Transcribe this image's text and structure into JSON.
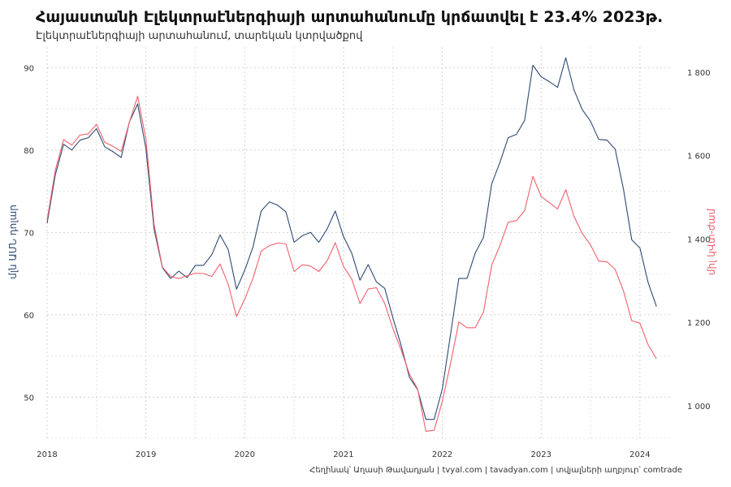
{
  "title": "Հայաստանի Էլեկտրաէներգիայի արտահանումը կրճատվել է 23.4% 2023թ.",
  "subtitle": "Էլեկտրաէներգիայի արտահանում, տարեկան կտրվածքով",
  "caption": "Հեղինակ՝ Աղասի Թավադյան   |   tvyal.com   |   tavadyan.com   |   տվյալների աղբյուր՝ comtrade",
  "colors": {
    "left_series": "#2e4a73",
    "right_series": "#f0606d",
    "grid": "#d0d0d0"
  },
  "chart_data": {
    "type": "line",
    "title": "Հայաստանի Էլեկտրաէներգիայի արտահանումը կրճատվել է 23.4% 2023թ.",
    "subtitle": "Էլեկտրաէներգիայի արտահանում, տարեկան կտրվածքով",
    "ylabel_left": "մլն ԱՄՆ դոլար",
    "ylabel_right": "միլ կՎտ-ժամ",
    "xlim": [
      2018,
      2024.33
    ],
    "ylim_left": [
      45,
      92.5
    ],
    "ylim_right": [
      922,
      1860
    ],
    "x_ticks": [
      {
        "v": 2018,
        "label": "2018"
      },
      {
        "v": 2019,
        "label": "2019"
      },
      {
        "v": 2020,
        "label": "2020"
      },
      {
        "v": 2021,
        "label": "2021"
      },
      {
        "v": 2022,
        "label": "2022"
      },
      {
        "v": 2023,
        "label": "2023"
      },
      {
        "v": 2024,
        "label": "2024"
      }
    ],
    "y_left_ticks": [
      {
        "v": 50,
        "label": "50"
      },
      {
        "v": 60,
        "label": "60"
      },
      {
        "v": 70,
        "label": "70"
      },
      {
        "v": 80,
        "label": "80"
      },
      {
        "v": 90,
        "label": "90"
      }
    ],
    "y_right_ticks": [
      {
        "v": 1000,
        "label": "1 000"
      },
      {
        "v": 1200,
        "label": "1 200"
      },
      {
        "v": 1400,
        "label": "1 400"
      },
      {
        "v": 1600,
        "label": "1 600"
      },
      {
        "v": 1800,
        "label": "1 800"
      }
    ],
    "grid": true,
    "series": [
      {
        "name": "մլն ԱՄՆ դոլար",
        "axis": "left",
        "x": [
          2018.0,
          2018.083,
          2018.167,
          2018.25,
          2018.333,
          2018.417,
          2018.5,
          2018.583,
          2018.667,
          2018.75,
          2018.833,
          2018.917,
          2019.0,
          2019.083,
          2019.167,
          2019.25,
          2019.333,
          2019.417,
          2019.5,
          2019.583,
          2019.667,
          2019.75,
          2019.833,
          2019.917,
          2020.0,
          2020.083,
          2020.167,
          2020.25,
          2020.333,
          2020.417,
          2020.5,
          2020.583,
          2020.667,
          2020.75,
          2020.833,
          2020.917,
          2021.0,
          2021.083,
          2021.167,
          2021.25,
          2021.333,
          2021.417,
          2021.5,
          2021.583,
          2021.667,
          2021.75,
          2021.833,
          2021.917,
          2022.0,
          2022.083,
          2022.167,
          2022.25,
          2022.333,
          2022.417,
          2022.5,
          2022.583,
          2022.667,
          2022.75,
          2022.833,
          2022.917,
          2023.0,
          2023.083,
          2023.167,
          2023.25,
          2023.333,
          2023.417,
          2023.5,
          2023.583,
          2023.667,
          2023.75,
          2023.833,
          2023.917,
          2024.0,
          2024.083,
          2024.167
        ],
        "y": [
          71.1,
          77.0,
          80.7,
          80.0,
          81.2,
          81.5,
          82.6,
          80.4,
          79.8,
          79.1,
          83.4,
          85.6,
          80.2,
          70.4,
          65.7,
          64.4,
          65.3,
          64.5,
          66.0,
          66.0,
          67.3,
          69.7,
          67.9,
          63.1,
          65.4,
          68.2,
          72.6,
          73.7,
          73.3,
          72.5,
          68.8,
          69.6,
          70.0,
          68.8,
          70.4,
          72.6,
          69.5,
          67.5,
          64.2,
          66.1,
          64.0,
          63.2,
          59.6,
          56.3,
          52.4,
          50.9,
          47.3,
          47.3,
          51.0,
          57.6,
          64.4,
          64.4,
          67.5,
          69.4,
          75.9,
          78.5,
          81.5,
          81.9,
          83.6,
          90.3,
          88.9,
          88.3,
          87.6,
          91.2,
          87.3,
          84.9,
          83.5,
          81.3,
          81.2,
          80.1,
          75.3,
          69.1,
          68.1,
          63.9,
          61.0
        ]
      },
      {
        "name": "միլ կՎտ-ժամ",
        "axis": "right",
        "x": [
          2018.0,
          2018.083,
          2018.167,
          2018.25,
          2018.333,
          2018.417,
          2018.5,
          2018.583,
          2018.667,
          2018.75,
          2018.833,
          2018.917,
          2019.0,
          2019.083,
          2019.167,
          2019.25,
          2019.333,
          2019.417,
          2019.5,
          2019.583,
          2019.667,
          2019.75,
          2019.833,
          2019.917,
          2020.0,
          2020.083,
          2020.167,
          2020.25,
          2020.333,
          2020.417,
          2020.5,
          2020.583,
          2020.667,
          2020.75,
          2020.833,
          2020.917,
          2021.0,
          2021.083,
          2021.167,
          2021.25,
          2021.333,
          2021.417,
          2021.5,
          2021.583,
          2021.667,
          2021.75,
          2021.833,
          2021.917,
          2022.0,
          2022.083,
          2022.167,
          2022.25,
          2022.333,
          2022.417,
          2022.5,
          2022.583,
          2022.667,
          2022.75,
          2022.833,
          2022.917,
          2023.0,
          2023.083,
          2023.167,
          2023.25,
          2023.333,
          2023.417,
          2023.5,
          2023.583,
          2023.667,
          2023.75,
          2023.833,
          2023.917,
          2024.0,
          2024.083,
          2024.167
        ],
        "y": [
          1445,
          1565,
          1638,
          1625,
          1649,
          1652,
          1675,
          1632,
          1622,
          1610,
          1680,
          1742,
          1640,
          1435,
          1332,
          1310,
          1305,
          1312,
          1318,
          1317,
          1310,
          1340,
          1291,
          1214,
          1256,
          1305,
          1371,
          1384,
          1390,
          1388,
          1322,
          1338,
          1335,
          1322,
          1347,
          1391,
          1334,
          1304,
          1245,
          1280,
          1283,
          1245,
          1185,
          1134,
          1076,
          1040,
          939,
          941,
          1011,
          1101,
          1201,
          1187,
          1187,
          1225,
          1337,
          1384,
          1440,
          1444,
          1468,
          1550,
          1502,
          1487,
          1472,
          1518,
          1454,
          1413,
          1386,
          1347,
          1345,
          1327,
          1276,
          1204,
          1198,
          1146,
          1113
        ]
      }
    ]
  }
}
